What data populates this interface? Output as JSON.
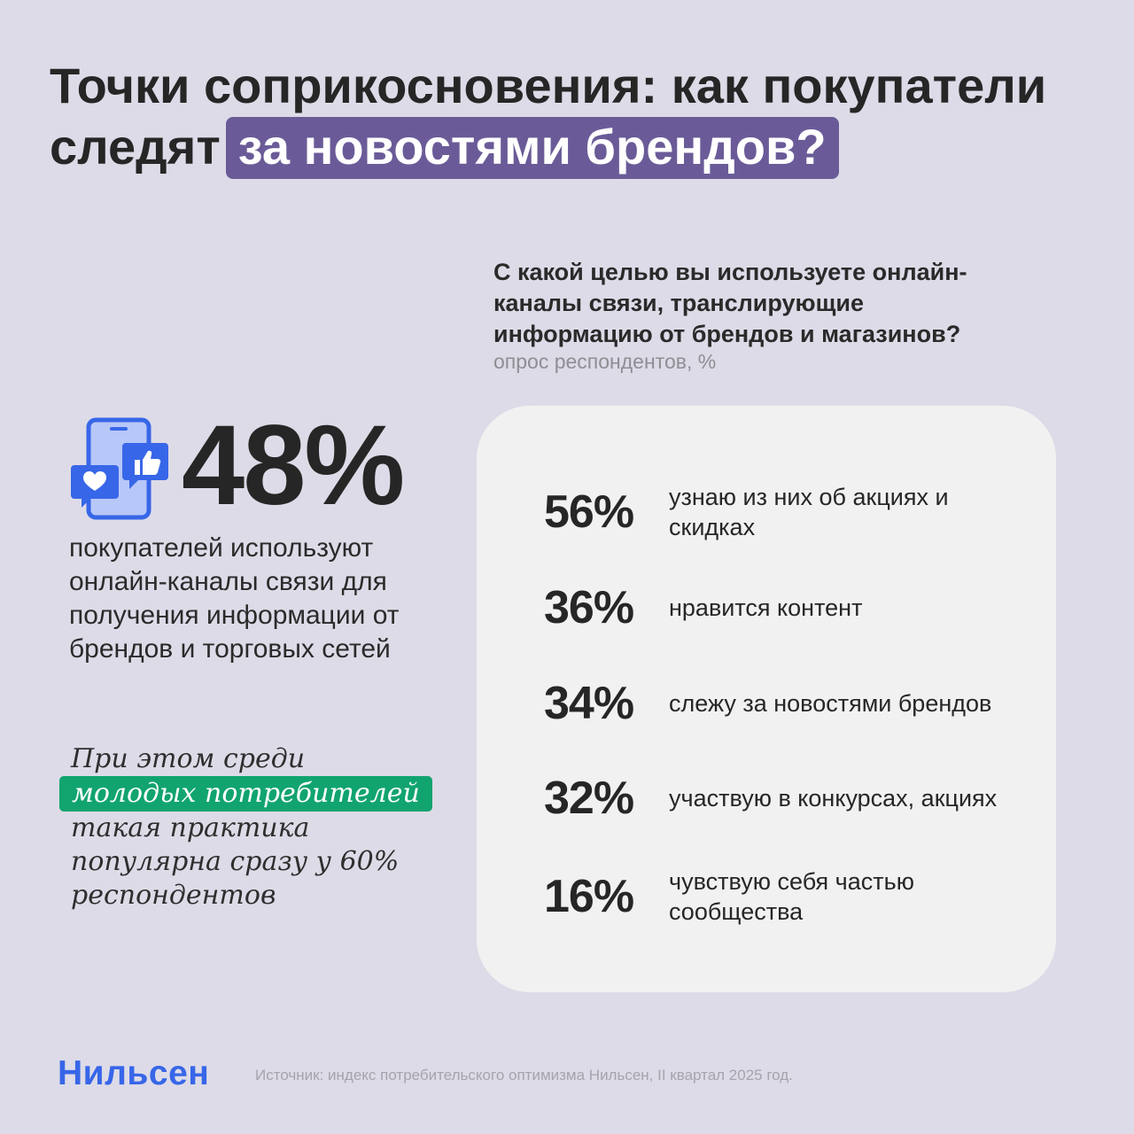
{
  "title": {
    "line1": "Точки соприкосновения: как покупатели",
    "line2_prefix": "следят",
    "line2_highlight": "за новостями брендов?"
  },
  "stat": {
    "icon": "phone-chat-like-heart-icon",
    "value": "48%",
    "description": "покупателей используют онлайн-каналы связи для получения информации от брендов и торговых сетей"
  },
  "note": {
    "line1": "При этом среди",
    "highlight": "молодых потребителей",
    "line3": "такая практика",
    "line4": "популярна сразу у 60%",
    "line5": "респондентов"
  },
  "survey": {
    "question_lines": [
      "С какой целью вы используете онлайн-",
      "каналы связи, транслирующие",
      "информацию от брендов и магазинов?"
    ],
    "subtitle": "опрос респондентов, %",
    "items": [
      {
        "value": "56%",
        "label": "узнаю из них об акциях и скидках"
      },
      {
        "value": "36%",
        "label": "нравится контент"
      },
      {
        "value": "34%",
        "label": "слежу за новостями брендов"
      },
      {
        "value": "32%",
        "label": "участвую в конкурсах, акциях"
      },
      {
        "value": "16%",
        "label": "чувствую себя частью сообщества"
      }
    ]
  },
  "footer": {
    "logo": "Нильсен",
    "source": "Источник: индекс потребительского оптимизма Нильсен, II квартал 2025 год."
  },
  "colors": {
    "background": "#dddbe7",
    "title_highlight": "#6a5b98",
    "note_highlight": "#11a46f",
    "icon_blue": "#3766e8",
    "icon_light": "#b7c7f8",
    "card": "#f1f1f1",
    "logo": "#3766e8"
  }
}
